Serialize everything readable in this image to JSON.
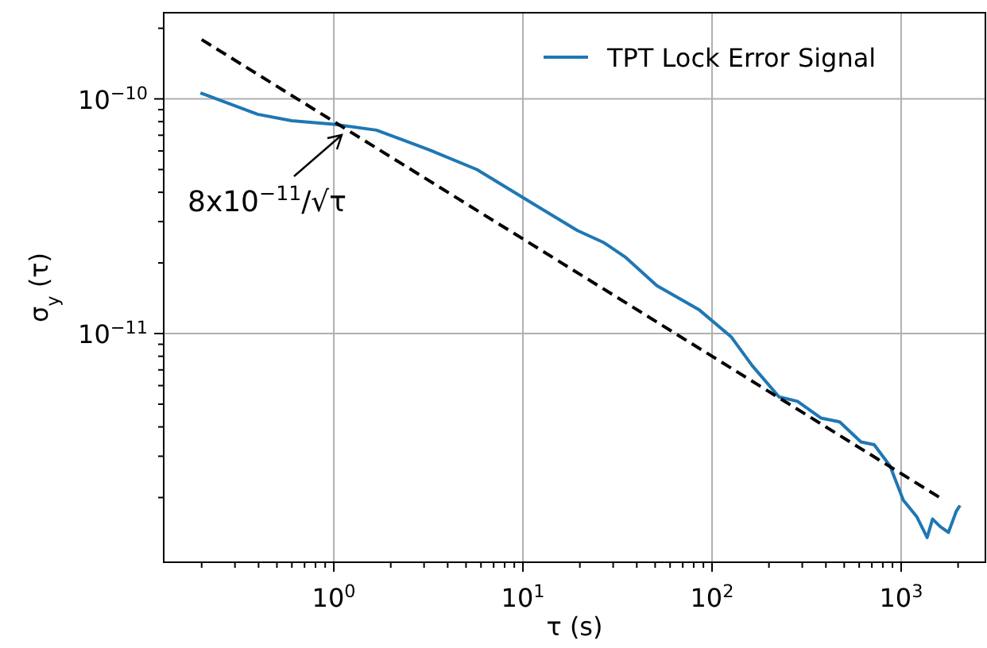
{
  "chart_data": {
    "type": "line",
    "xlabel": "τ (s)",
    "ylabel": "σ$_{y}$ (τ)",
    "log": "xy",
    "grid": true,
    "legend": "top right",
    "line_style": "solid",
    "xlim": [
      0.126,
      2790
    ],
    "ylim": [
      1.06e-12,
      2.33e-10
    ],
    "xticks": [
      {
        "value": 0.2,
        "label": null
      },
      {
        "value": 0.3,
        "label": null
      },
      {
        "value": 0.4,
        "label": null
      },
      {
        "value": 0.5,
        "label": null
      },
      {
        "value": 0.6,
        "label": null
      },
      {
        "value": 0.7,
        "label": null
      },
      {
        "value": 0.8,
        "label": null
      },
      {
        "value": 0.9,
        "label": null
      },
      {
        "value": 1,
        "label": "10$^{0}$"
      },
      {
        "value": 2,
        "label": null
      },
      {
        "value": 3,
        "label": null
      },
      {
        "value": 4,
        "label": null
      },
      {
        "value": 5,
        "label": null
      },
      {
        "value": 6,
        "label": null
      },
      {
        "value": 7,
        "label": null
      },
      {
        "value": 8,
        "label": null
      },
      {
        "value": 9,
        "label": null
      },
      {
        "value": 10,
        "label": "10$^{1}$"
      },
      {
        "value": 20,
        "label": null
      },
      {
        "value": 30,
        "label": null
      },
      {
        "value": 40,
        "label": null
      },
      {
        "value": 50,
        "label": null
      },
      {
        "value": 60,
        "label": null
      },
      {
        "value": 70,
        "label": null
      },
      {
        "value": 80,
        "label": null
      },
      {
        "value": 90,
        "label": null
      },
      {
        "value": 100,
        "label": "10$^{2}$"
      },
      {
        "value": 200,
        "label": null
      },
      {
        "value": 300,
        "label": null
      },
      {
        "value": 400,
        "label": null
      },
      {
        "value": 500,
        "label": null
      },
      {
        "value": 600,
        "label": null
      },
      {
        "value": 700,
        "label": null
      },
      {
        "value": 800,
        "label": null
      },
      {
        "value": 900,
        "label": null
      },
      {
        "value": 1000,
        "label": "10$^{3}$"
      },
      {
        "value": 2000,
        "label": null
      }
    ],
    "yticks": [
      {
        "value": 2e-12,
        "label": null
      },
      {
        "value": 3e-12,
        "label": null
      },
      {
        "value": 4e-12,
        "label": null
      },
      {
        "value": 5e-12,
        "label": null
      },
      {
        "value": 6e-12,
        "label": null
      },
      {
        "value": 7e-12,
        "label": null
      },
      {
        "value": 8e-12,
        "label": null
      },
      {
        "value": 9e-12,
        "label": null
      },
      {
        "value": 1e-11,
        "label": "10$^{−11}$"
      },
      {
        "value": 2e-11,
        "label": null
      },
      {
        "value": 3e-11,
        "label": null
      },
      {
        "value": 4e-11,
        "label": null
      },
      {
        "value": 5e-11,
        "label": null
      },
      {
        "value": 6e-11,
        "label": null
      },
      {
        "value": 7e-11,
        "label": null
      },
      {
        "value": 8e-11,
        "label": null
      },
      {
        "value": 9e-11,
        "label": null
      },
      {
        "value": 1e-10,
        "label": "10$^{−10}$"
      },
      {
        "value": 2e-10,
        "label": null
      }
    ],
    "series": [
      {
        "name": "TPT Lock Error Signal",
        "color": "#1f77b4",
        "x": [
          0.197,
          0.395,
          0.597,
          1,
          1.68,
          3.19,
          5.71,
          10.2,
          19.4,
          26.8,
          34.7,
          51.1,
          85.7,
          126,
          163,
          226,
          283,
          378,
          473,
          613,
          720,
          873,
          1026,
          1208,
          1372,
          1466,
          1614,
          1778,
          1958,
          2047
        ],
        "values": [
          1.06e-10,
          8.6e-11,
          8.07e-11,
          7.8e-11,
          7.36e-11,
          6.07e-11,
          5e-11,
          3.76e-11,
          2.75e-11,
          2.44e-11,
          2.12e-11,
          1.6e-11,
          1.26e-11,
          9.7e-12,
          7.3e-12,
          5.37e-12,
          5.14e-12,
          4.36e-12,
          4.2e-12,
          3.45e-12,
          3.36e-12,
          2.73e-12,
          1.95e-12,
          1.66e-12,
          1.35e-12,
          1.62e-12,
          1.5e-12,
          1.42e-12,
          1.75e-12,
          1.85e-12
        ]
      },
      {
        "color": "#000000",
        "line_style": "dashed",
        "x": [
          0.2,
          1600
        ],
        "values": [
          1.79e-10,
          2e-12
        ]
      }
    ],
    "annotations": [
      "8x10$^{−11}$/√τ"
    ]
  }
}
